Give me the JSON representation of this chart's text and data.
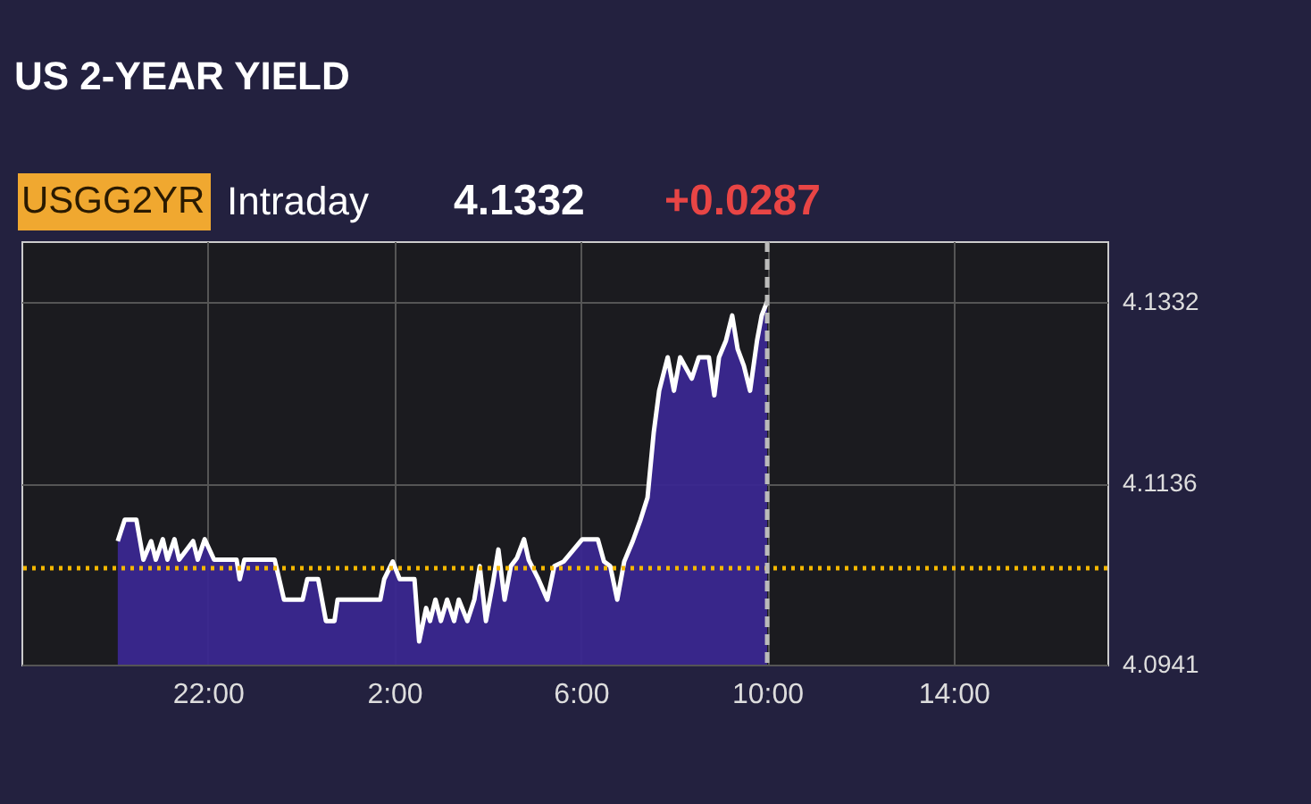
{
  "chart_data": {
    "type": "area",
    "title": "US 2-YEAR YIELD",
    "annotations": [
      "USGG2YR",
      "Intraday",
      "4.1332",
      "+0.0287"
    ],
    "x": [
      "2000-01-01T20:04",
      "2000-01-01T20:13",
      "2000-01-01T20:28",
      "2000-01-01T20:37",
      "2000-01-01T20:47",
      "2000-01-01T20:53",
      "2000-01-01T21:02",
      "2000-01-01T21:08",
      "2000-01-01T21:17",
      "2000-01-01T21:23",
      "2000-01-01T21:41",
      "2000-01-01T21:47",
      "2000-01-01T21:56",
      "2000-01-01T22:08",
      "2000-01-01T22:37",
      "2000-01-01T22:41",
      "2000-01-01T22:47",
      "2000-01-01T23:26",
      "2000-01-01T23:38",
      "2000-01-02T00:02",
      "2000-01-02T00:08",
      "2000-01-02T00:22",
      "2000-01-02T00:32",
      "2000-01-02T00:43",
      "2000-01-02T00:47",
      "2000-01-02T01:42",
      "2000-01-02T01:47",
      "2000-01-02T01:58",
      "2000-01-02T02:07",
      "2000-01-02T02:26",
      "2000-01-02T02:32",
      "2000-01-02T02:41",
      "2000-01-02T02:46",
      "2000-01-02T02:53",
      "2000-01-02T03:00",
      "2000-01-02T03:08",
      "2000-01-02T03:17",
      "2000-01-02T03:23",
      "2000-01-02T03:34",
      "2000-01-02T03:43",
      "2000-01-02T03:50",
      "2000-01-02T03:58",
      "2000-01-02T04:07",
      "2000-01-02T04:14",
      "2000-01-02T04:22",
      "2000-01-02T04:30",
      "2000-01-02T04:38",
      "2000-01-02T04:47",
      "2000-01-02T04:53",
      "2000-01-02T05:05",
      "2000-01-02T05:17",
      "2000-01-02T05:26",
      "2000-01-02T05:38",
      "2000-01-02T06:02",
      "2000-01-02T06:22",
      "2000-01-02T06:30",
      "2000-01-02T06:38",
      "2000-01-02T06:47",
      "2000-01-02T06:56",
      "2000-01-02T07:07",
      "2000-01-02T07:17",
      "2000-01-02T07:26",
      "2000-01-02T07:34",
      "2000-01-02T07:41",
      "2000-01-02T07:52",
      "2000-01-02T08:00",
      "2000-01-02T08:08",
      "2000-01-02T08:23",
      "2000-01-02T08:32",
      "2000-01-02T08:45",
      "2000-01-02T08:52",
      "2000-01-02T08:58",
      "2000-01-02T09:07",
      "2000-01-02T09:15",
      "2000-01-02T09:22",
      "2000-01-02T09:30",
      "2000-01-02T09:38",
      "2000-01-02T09:47",
      "2000-01-02T09:53",
      "2000-01-02T10:00"
    ],
    "series": [
      {
        "color": "#ffffff",
        "values": [
          4.1074,
          4.1097,
          4.1097,
          4.1054,
          4.1074,
          4.1054,
          4.1076,
          4.1054,
          4.1076,
          4.1054,
          4.1074,
          4.1054,
          4.1076,
          4.1054,
          4.1054,
          4.1033,
          4.1054,
          4.1054,
          4.1011,
          4.1011,
          4.1033,
          4.1033,
          4.0988,
          4.0988,
          4.1011,
          4.1011,
          4.1033,
          4.1052,
          4.1033,
          4.1033,
          4.0966,
          4.1002,
          4.0988,
          4.1011,
          4.0988,
          4.1011,
          4.0988,
          4.1011,
          4.0988,
          4.1011,
          4.1047,
          4.0988,
          4.1029,
          4.1065,
          4.1011,
          4.1047,
          4.1056,
          4.1076,
          4.1054,
          4.1034,
          4.1011,
          4.1047,
          4.1052,
          4.1076,
          4.1076,
          4.1052,
          4.1047,
          4.1011,
          4.1052,
          4.1074,
          4.1097,
          4.1121,
          4.1191,
          4.1236,
          4.1272,
          4.1236,
          4.1272,
          4.1249,
          4.1272,
          4.1272,
          4.1231,
          4.1272,
          4.129,
          4.1317,
          4.1281,
          4.1263,
          4.1236,
          4.129,
          4.1317,
          4.1332
        ]
      }
    ],
    "xlim": [
      "2000-01-01T18:00",
      "2000-01-02T17:18"
    ],
    "xticks": [
      {
        "value": "2000-01-01T22:00",
        "label": "22:00"
      },
      {
        "value": "2000-01-02T02:00",
        "label": "2:00"
      },
      {
        "value": "2000-01-02T06:00",
        "label": "6:00"
      },
      {
        "value": "2000-01-02T10:00",
        "label": "10:00"
      },
      {
        "value": "2000-01-02T14:00",
        "label": "14:00"
      }
    ],
    "ylim": [
      4.0941,
      4.1397
    ],
    "yticks": [
      4.0941,
      4.1136,
      4.1332
    ],
    "ref_lines": [
      {
        "axis": "y",
        "value": 4.1045,
        "color": "#f5b800",
        "line_style": "dotted"
      },
      {
        "axis": "x",
        "value": "2000-01-02T10:00",
        "color": "#bbbbbb",
        "line_style": "dashed"
      }
    ],
    "grid": true
  }
}
